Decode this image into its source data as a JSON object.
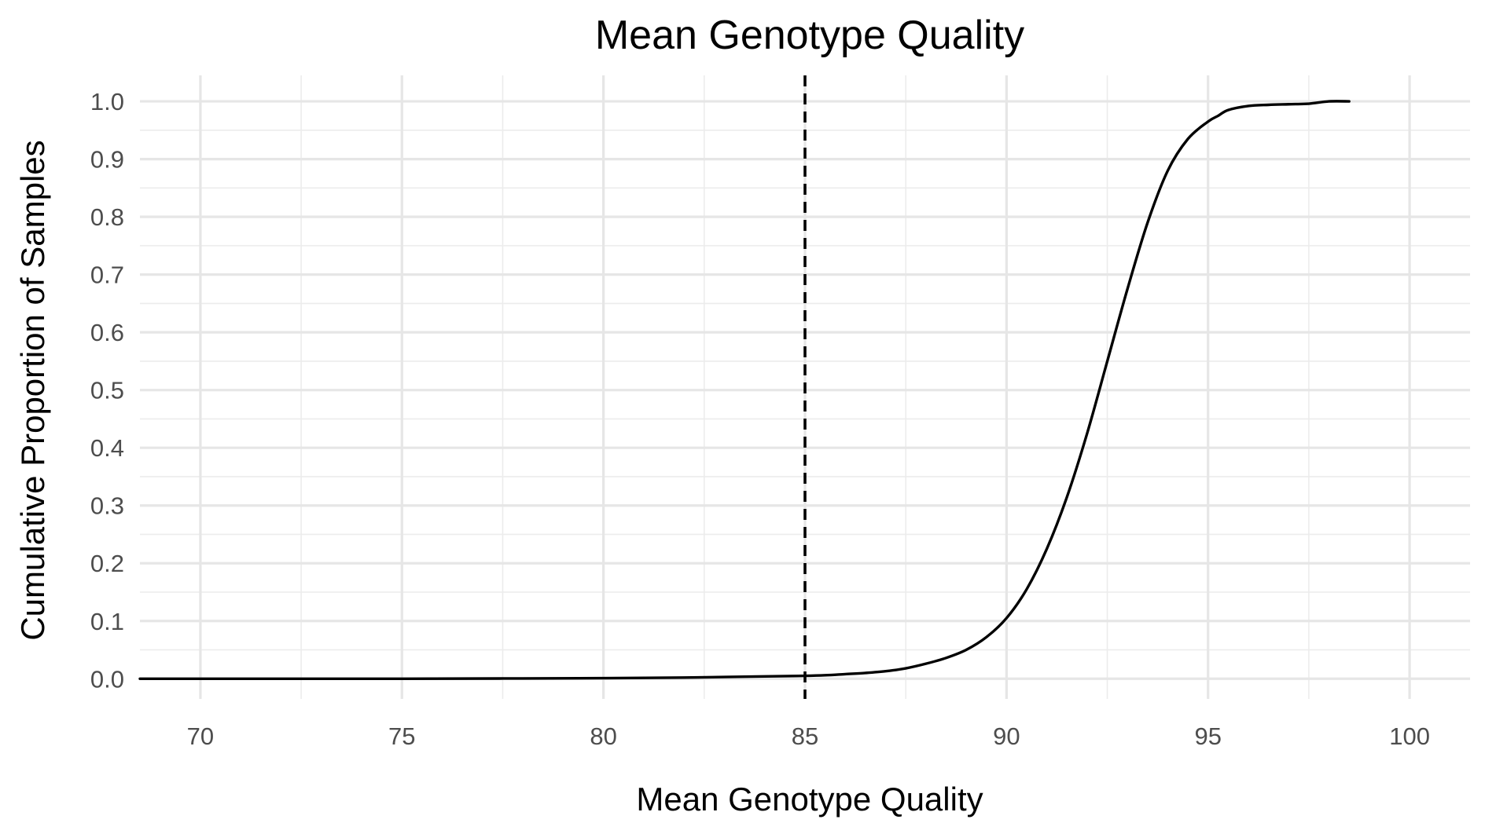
{
  "chart_data": {
    "type": "line",
    "title": "Mean Genotype Quality",
    "xlabel": "Mean Genotype Quality",
    "ylabel": "Cumulative Proportion of Samples",
    "xlim": [
      68.5,
      101.5
    ],
    "ylim": [
      -0.035,
      1.045
    ],
    "x_ticks": [
      70,
      75,
      80,
      85,
      90,
      95,
      100
    ],
    "y_ticks": [
      0.0,
      0.1,
      0.2,
      0.3,
      0.4,
      0.5,
      0.6,
      0.7,
      0.8,
      0.9,
      1.0
    ],
    "x_tick_labels": [
      "70",
      "75",
      "80",
      "85",
      "90",
      "95",
      "100"
    ],
    "y_tick_labels": [
      "0.0",
      "0.1",
      "0.2",
      "0.3",
      "0.4",
      "0.5",
      "0.6",
      "0.7",
      "0.8",
      "0.9",
      "1.0"
    ],
    "grid": true,
    "reference_line": {
      "x": 85,
      "style": "dashed",
      "color": "#000000"
    },
    "series": [
      {
        "color": "#000000",
        "x": [
          68.5,
          75,
          78,
          80,
          82,
          83,
          84,
          85,
          85.5,
          86,
          86.5,
          87,
          87.5,
          88,
          88.5,
          89,
          89.5,
          90,
          90.5,
          91,
          91.5,
          92,
          92.5,
          93,
          93.5,
          94,
          94.5,
          95,
          95.25,
          95.5,
          96,
          96.5,
          97,
          97.5,
          98,
          98.5
        ],
        "y": [
          0.0,
          0.0,
          0.0005,
          0.001,
          0.002,
          0.003,
          0.004,
          0.005,
          0.006,
          0.008,
          0.01,
          0.013,
          0.018,
          0.026,
          0.036,
          0.05,
          0.072,
          0.105,
          0.155,
          0.225,
          0.315,
          0.425,
          0.55,
          0.675,
          0.79,
          0.88,
          0.935,
          0.965,
          0.975,
          0.985,
          0.992,
          0.994,
          0.995,
          0.996,
          1.0,
          1.0
        ]
      }
    ]
  }
}
